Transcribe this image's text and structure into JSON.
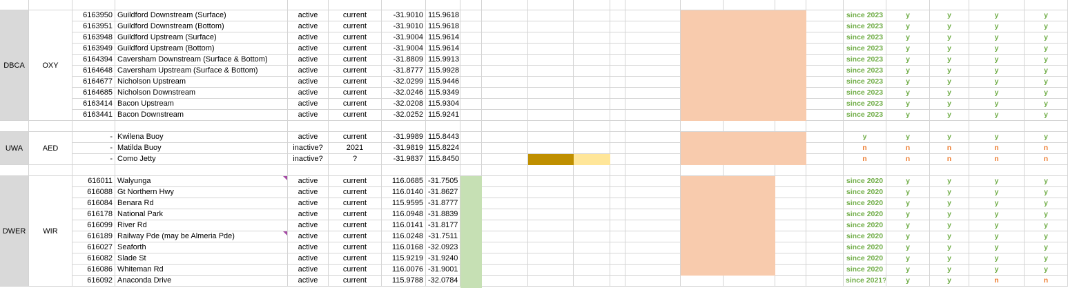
{
  "groups": [
    {
      "org": "DBCA",
      "type": "OXY",
      "rows": [
        {
          "id": "6163950",
          "name": "Guildford Downstream (Surface)",
          "status": "active",
          "period": "current",
          "c1": "-31.9010",
          "c2": "115.9618",
          "since": "since 2023",
          "f1": "y",
          "f2": "y",
          "f3": "y",
          "f4": "y"
        },
        {
          "id": "6163951",
          "name": "Guildford Downstream (Bottom)",
          "status": "active",
          "period": "current",
          "c1": "-31.9010",
          "c2": "115.9618",
          "since": "since 2023",
          "f1": "y",
          "f2": "y",
          "f3": "y",
          "f4": "y"
        },
        {
          "id": "6163948",
          "name": "Guildford Upstream (Surface)",
          "status": "active",
          "period": "current",
          "c1": "-31.9004",
          "c2": "115.9614",
          "since": "since 2023",
          "f1": "y",
          "f2": "y",
          "f3": "y",
          "f4": "y"
        },
        {
          "id": "6163949",
          "name": "Guildford Upstream (Bottom)",
          "status": "active",
          "period": "current",
          "c1": "-31.9004",
          "c2": "115.9614",
          "since": "since 2023",
          "f1": "y",
          "f2": "y",
          "f3": "y",
          "f4": "y"
        },
        {
          "id": "6164394",
          "name": "Caversham Downstream (Surface & Bottom)",
          "status": "active",
          "period": "current",
          "c1": "-31.8809",
          "c2": "115.9913",
          "since": "since 2023",
          "f1": "y",
          "f2": "y",
          "f3": "y",
          "f4": "y"
        },
        {
          "id": "6164648",
          "name": "Caversham Upstream (Surface & Bottom)",
          "status": "active",
          "period": "current",
          "c1": "-31.8777",
          "c2": "115.9928",
          "since": "since 2023",
          "f1": "y",
          "f2": "y",
          "f3": "y",
          "f4": "y"
        },
        {
          "id": "6164677",
          "name": "Nicholson Upstream",
          "status": "active",
          "period": "current",
          "c1": "-32.0299",
          "c2": "115.9446",
          "since": "since 2023",
          "f1": "y",
          "f2": "y",
          "f3": "y",
          "f4": "y"
        },
        {
          "id": "6164685",
          "name": "Nicholson Downstream",
          "status": "active",
          "period": "current",
          "c1": "-32.0246",
          "c2": "115.9349",
          "since": "since 2023",
          "f1": "y",
          "f2": "y",
          "f3": "y",
          "f4": "y"
        },
        {
          "id": "6163414",
          "name": "Bacon Upstream",
          "status": "active",
          "period": "current",
          "c1": "-32.0208",
          "c2": "115.9304",
          "since": "since 2023",
          "f1": "y",
          "f2": "y",
          "f3": "y",
          "f4": "y"
        },
        {
          "id": "6163441",
          "name": "Bacon Downstream",
          "status": "active",
          "period": "current",
          "c1": "-32.0252",
          "c2": "115.9241",
          "since": "since 2023",
          "f1": "y",
          "f2": "y",
          "f3": "y",
          "f4": "y"
        }
      ]
    },
    {
      "org": "UWA",
      "type": "AED",
      "rows": [
        {
          "id": "-",
          "name": "Kwilena Buoy",
          "status": "active",
          "period": "current",
          "c1": "-31.9989",
          "c2": "115.8443",
          "since": "y",
          "f1": "y",
          "f2": "y",
          "f3": "y",
          "f4": "y"
        },
        {
          "id": "-",
          "name": "Matilda Buoy",
          "status": "inactive?",
          "period": "2021",
          "c1": "-31.9819",
          "c2": "115.8224",
          "since": "n",
          "f1": "n",
          "f2": "n",
          "f3": "n",
          "f4": "n"
        },
        {
          "id": "-",
          "name": "Como Jetty",
          "status": "inactive?",
          "period": "?",
          "c1": "-31.9837",
          "c2": "115.8450",
          "since": "n",
          "f1": "n",
          "f2": "n",
          "f3": "n",
          "f4": "n"
        }
      ]
    },
    {
      "org": "DWER",
      "type": "WIR",
      "rows": [
        {
          "id": "616011",
          "name": "Walyunga",
          "status": "active",
          "period": "current",
          "c1": "116.0685",
          "c2": "-31.7505",
          "since": "since 2020",
          "f1": "y",
          "f2": "y",
          "f3": "y",
          "f4": "y"
        },
        {
          "id": "616088",
          "name": "Gt Northern Hwy",
          "status": "active",
          "period": "current",
          "c1": "116.0140",
          "c2": "-31.8627",
          "since": "since 2020",
          "f1": "y",
          "f2": "y",
          "f3": "y",
          "f4": "y"
        },
        {
          "id": "616084",
          "name": "Benara Rd",
          "status": "active",
          "period": "current",
          "c1": "115.9595",
          "c2": "-31.8777",
          "since": "since 2020",
          "f1": "y",
          "f2": "y",
          "f3": "y",
          "f4": "y"
        },
        {
          "id": "616178",
          "name": "National Park",
          "status": "active",
          "period": "current",
          "c1": "116.0948",
          "c2": "-31.8839",
          "since": "since 2020",
          "f1": "y",
          "f2": "y",
          "f3": "y",
          "f4": "y"
        },
        {
          "id": "616099",
          "name": "River Rd",
          "status": "active",
          "period": "current",
          "c1": "116.0141",
          "c2": "-31.8177",
          "since": "since 2020",
          "f1": "y",
          "f2": "y",
          "f3": "y",
          "f4": "y"
        },
        {
          "id": "616189",
          "name": "Railway Pde (may be Almeria Pde)",
          "status": "active",
          "period": "current",
          "c1": "116.0248",
          "c2": "-31.7511",
          "since": "since 2020",
          "f1": "y",
          "f2": "y",
          "f3": "y",
          "f4": "y"
        },
        {
          "id": "616027",
          "name": "Seaforth",
          "status": "active",
          "period": "current",
          "c1": "116.0168",
          "c2": "-32.0923",
          "since": "since 2020",
          "f1": "y",
          "f2": "y",
          "f3": "y",
          "f4": "y"
        },
        {
          "id": "616082",
          "name": "Slade St",
          "status": "active",
          "period": "current",
          "c1": "115.9219",
          "c2": "-31.9240",
          "since": "since 2020",
          "f1": "y",
          "f2": "y",
          "f3": "y",
          "f4": "y"
        },
        {
          "id": "616086",
          "name": "Whiteman Rd",
          "status": "active",
          "period": "current",
          "c1": "116.0076",
          "c2": "-31.9001",
          "since": "since 2020",
          "f1": "y",
          "f2": "y",
          "f3": "y",
          "f4": "y"
        },
        {
          "id": "616092",
          "name": "Anaconda Drive",
          "status": "active",
          "period": "current",
          "c1": "115.9788",
          "c2": "-32.0784",
          "since": "since 2021?",
          "f1": "y",
          "f2": "y",
          "f3": "n",
          "f4": "n"
        }
      ]
    }
  ],
  "colors": {
    "peach": "#f8cbad",
    "green_fill": "#c6e0b4",
    "gold": "#bf8f00",
    "light_yellow": "#ffe699",
    "label_grey": "#d9d9d9",
    "text_green": "#70ad47",
    "text_orange": "#ed7d31"
  }
}
